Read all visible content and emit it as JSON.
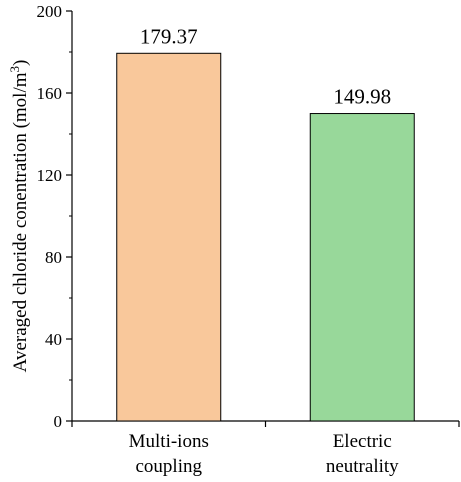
{
  "chart_data": {
    "type": "bar",
    "categories": [
      [
        "Multi-ions",
        "coupling"
      ],
      [
        "Electric",
        "neutrality"
      ]
    ],
    "values": [
      179.37,
      149.98
    ],
    "data_labels": [
      "179.37",
      "149.98"
    ],
    "colors": [
      "#f9c89b",
      "#98d89a"
    ],
    "xlabel": "",
    "ylabel": "Averaged chloride conentration (mol/m",
    "ylabel_superscript": "3",
    "ylabel_suffix": ")",
    "ylim": [
      0,
      200
    ],
    "yticks": [
      0,
      40,
      80,
      120,
      160,
      200
    ],
    "grid": false,
    "legend": "none"
  }
}
